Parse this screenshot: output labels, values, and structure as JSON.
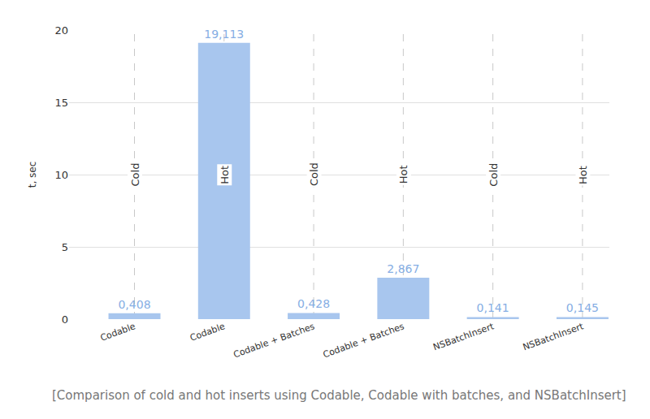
{
  "chart_data": {
    "type": "bar",
    "caption": "[Comparison of cold and hot inserts using Codable, Codable with batches, and NSBatchInsert]",
    "y_label": "t, sec",
    "categories": [
      "Codable",
      "Codable",
      "Codable + Batches",
      "Codable + Batches",
      "NSBatchInsert",
      "NSBatchInsert"
    ],
    "values": [
      0.408,
      19.113,
      0.428,
      2.867,
      0.141,
      0.145
    ],
    "value_labels": [
      "0,408",
      "19,113",
      "0,428",
      "2,867",
      "0,141",
      "0,145"
    ],
    "annotations": [
      "Cold",
      "Hot",
      "Cold",
      "Hot",
      "Cold",
      "Hot"
    ],
    "color": "#a8c6ee",
    "ylim": [
      0,
      20
    ],
    "yticks": [
      0,
      5,
      10,
      15,
      20
    ],
    "grid": true,
    "data_labels": true
  }
}
